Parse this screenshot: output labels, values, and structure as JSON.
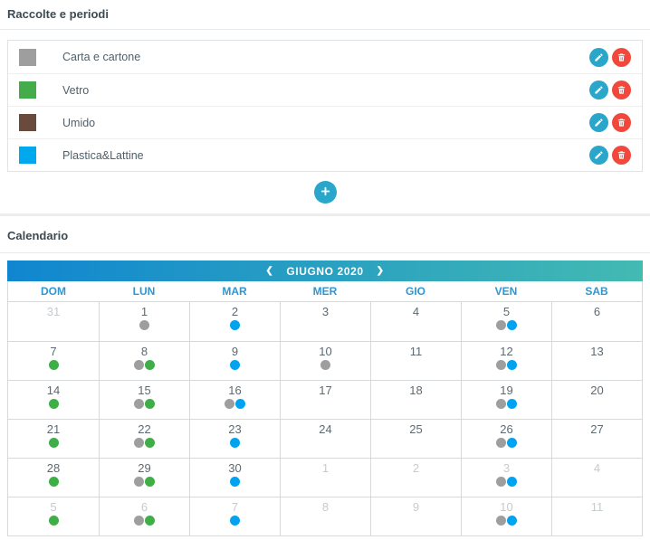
{
  "collections": {
    "title": "Raccolte e periodi",
    "items": [
      {
        "key": "carta",
        "label": "Carta e cartone",
        "color": "#9e9e9e"
      },
      {
        "key": "vetro",
        "label": "Vetro",
        "color": "#45ac4b"
      },
      {
        "key": "umido",
        "label": "Umido",
        "color": "#6b4a3e"
      },
      {
        "key": "plastica",
        "label": "Plastica&Lattine",
        "color": "#00a8ee"
      }
    ],
    "icons": {
      "edit": "pencil-icon",
      "delete": "trash-icon",
      "add": "plus-icon"
    }
  },
  "calendar": {
    "title": "Calendario",
    "month_label": "GIUGNO 2020",
    "prev_glyph": "❮",
    "next_glyph": "❯",
    "day_headers": [
      "DOM",
      "LUN",
      "MAR",
      "MER",
      "GIO",
      "VEN",
      "SAB"
    ],
    "dot_colors": {
      "carta": "#9e9e9e",
      "vetro": "#3fae46",
      "plastica": "#00a3ef"
    },
    "weeks": [
      [
        {
          "day": "31",
          "out": true,
          "dots": []
        },
        {
          "day": "1",
          "dots": [
            "carta"
          ]
        },
        {
          "day": "2",
          "dots": [
            "plastica"
          ]
        },
        {
          "day": "3",
          "dots": []
        },
        {
          "day": "4",
          "dots": []
        },
        {
          "day": "5",
          "dots": [
            "carta",
            "plastica"
          ]
        },
        {
          "day": "6",
          "dots": []
        }
      ],
      [
        {
          "day": "7",
          "dots": [
            "vetro"
          ]
        },
        {
          "day": "8",
          "dots": [
            "carta",
            "vetro"
          ]
        },
        {
          "day": "9",
          "dots": [
            "plastica"
          ]
        },
        {
          "day": "10",
          "dots": [
            "carta"
          ]
        },
        {
          "day": "11",
          "dots": []
        },
        {
          "day": "12",
          "dots": [
            "carta",
            "plastica"
          ]
        },
        {
          "day": "13",
          "dots": []
        }
      ],
      [
        {
          "day": "14",
          "dots": [
            "vetro"
          ]
        },
        {
          "day": "15",
          "dots": [
            "carta",
            "vetro"
          ]
        },
        {
          "day": "16",
          "dots": [
            "carta",
            "plastica"
          ]
        },
        {
          "day": "17",
          "dots": []
        },
        {
          "day": "18",
          "dots": []
        },
        {
          "day": "19",
          "dots": [
            "carta",
            "plastica"
          ]
        },
        {
          "day": "20",
          "dots": []
        }
      ],
      [
        {
          "day": "21",
          "dots": [
            "vetro"
          ]
        },
        {
          "day": "22",
          "dots": [
            "carta",
            "vetro"
          ]
        },
        {
          "day": "23",
          "dots": [
            "plastica"
          ]
        },
        {
          "day": "24",
          "dots": []
        },
        {
          "day": "25",
          "dots": []
        },
        {
          "day": "26",
          "dots": [
            "carta",
            "plastica"
          ]
        },
        {
          "day": "27",
          "dots": []
        }
      ],
      [
        {
          "day": "28",
          "dots": [
            "vetro"
          ]
        },
        {
          "day": "29",
          "dots": [
            "carta",
            "vetro"
          ]
        },
        {
          "day": "30",
          "dots": [
            "plastica"
          ]
        },
        {
          "day": "1",
          "out": true,
          "dots": []
        },
        {
          "day": "2",
          "out": true,
          "dots": []
        },
        {
          "day": "3",
          "out": true,
          "dots": [
            "carta",
            "plastica"
          ]
        },
        {
          "day": "4",
          "out": true,
          "dots": []
        }
      ],
      [
        {
          "day": "5",
          "out": true,
          "dots": [
            "vetro"
          ]
        },
        {
          "day": "6",
          "out": true,
          "dots": [
            "carta",
            "vetro"
          ]
        },
        {
          "day": "7",
          "out": true,
          "dots": [
            "plastica"
          ]
        },
        {
          "day": "8",
          "out": true,
          "dots": []
        },
        {
          "day": "9",
          "out": true,
          "dots": []
        },
        {
          "day": "10",
          "out": true,
          "dots": [
            "carta",
            "plastica"
          ]
        },
        {
          "day": "11",
          "out": true,
          "dots": []
        }
      ]
    ]
  },
  "colors": {
    "accent": "#29a6c9",
    "danger": "#f2483c",
    "header_gradient_start": "#1086d0",
    "header_gradient_end": "#43bab2",
    "weekday_text": "#2e96d4"
  }
}
